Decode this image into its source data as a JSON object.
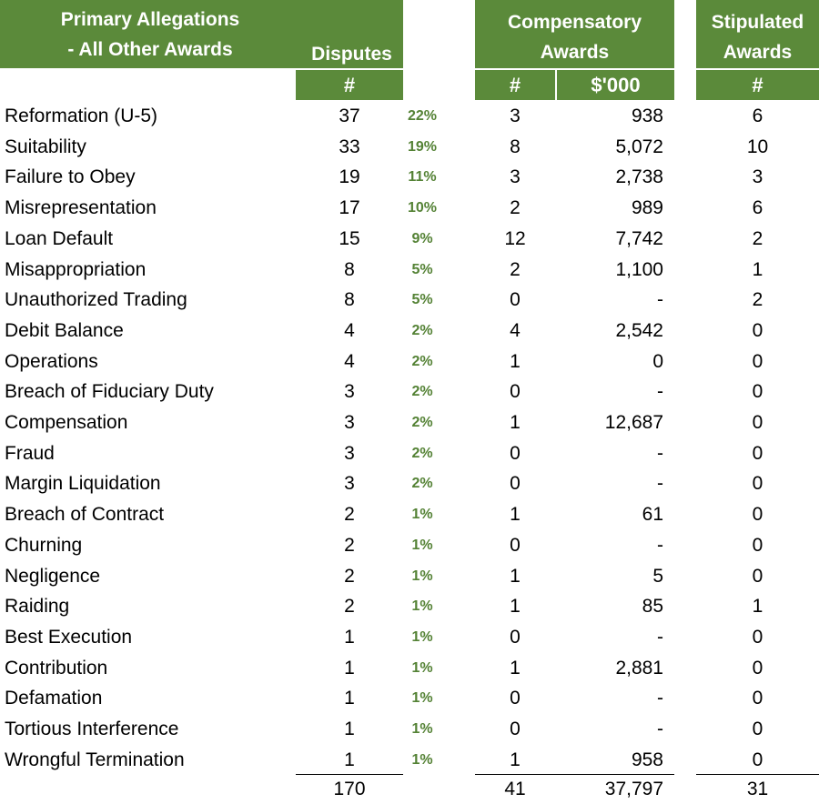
{
  "headers": {
    "primary_line1": "Primary Allegations",
    "primary_line2": "- All Other Awards",
    "disputes": "Disputes",
    "disputes_sub": "#",
    "comp_line1": "Compensatory",
    "comp_line2": "Awards",
    "comp_count_sub": "#",
    "comp_amount_sub": "$'000",
    "stip_line1": "Stipulated",
    "stip_line2": "Awards",
    "stip_sub": "#"
  },
  "rows": [
    {
      "name": "Reformation (U-5)",
      "disputes": "37",
      "pct": "22%",
      "comp_count": "3",
      "comp_amount": "938",
      "stip": "6"
    },
    {
      "name": "Suitability",
      "disputes": "33",
      "pct": "19%",
      "comp_count": "8",
      "comp_amount": "5,072",
      "stip": "10"
    },
    {
      "name": "Failure to Obey",
      "disputes": "19",
      "pct": "11%",
      "comp_count": "3",
      "comp_amount": "2,738",
      "stip": "3"
    },
    {
      "name": "Misrepresentation",
      "disputes": "17",
      "pct": "10%",
      "comp_count": "2",
      "comp_amount": "989",
      "stip": "6"
    },
    {
      "name": "Loan Default",
      "disputes": "15",
      "pct": "9%",
      "comp_count": "12",
      "comp_amount": "7,742",
      "stip": "2"
    },
    {
      "name": "Misappropriation",
      "disputes": "8",
      "pct": "5%",
      "comp_count": "2",
      "comp_amount": "1,100",
      "stip": "1"
    },
    {
      "name": "Unauthorized Trading",
      "disputes": "8",
      "pct": "5%",
      "comp_count": "0",
      "comp_amount": "-",
      "stip": "2"
    },
    {
      "name": "Debit Balance",
      "disputes": "4",
      "pct": "2%",
      "comp_count": "4",
      "comp_amount": "2,542",
      "stip": "0"
    },
    {
      "name": "Operations",
      "disputes": "4",
      "pct": "2%",
      "comp_count": "1",
      "comp_amount": "0",
      "stip": "0"
    },
    {
      "name": "Breach of Fiduciary Duty",
      "disputes": "3",
      "pct": "2%",
      "comp_count": "0",
      "comp_amount": "-",
      "stip": "0"
    },
    {
      "name": "Compensation",
      "disputes": "3",
      "pct": "2%",
      "comp_count": "1",
      "comp_amount": "12,687",
      "stip": "0"
    },
    {
      "name": "Fraud",
      "disputes": "3",
      "pct": "2%",
      "comp_count": "0",
      "comp_amount": "-",
      "stip": "0"
    },
    {
      "name": "Margin Liquidation",
      "disputes": "3",
      "pct": "2%",
      "comp_count": "0",
      "comp_amount": "-",
      "stip": "0"
    },
    {
      "name": "Breach of Contract",
      "disputes": "2",
      "pct": "1%",
      "comp_count": "1",
      "comp_amount": "61",
      "stip": "0"
    },
    {
      "name": "Churning",
      "disputes": "2",
      "pct": "1%",
      "comp_count": "0",
      "comp_amount": "-",
      "stip": "0"
    },
    {
      "name": "Negligence",
      "disputes": "2",
      "pct": "1%",
      "comp_count": "1",
      "comp_amount": "5",
      "stip": "0"
    },
    {
      "name": "Raiding",
      "disputes": "2",
      "pct": "1%",
      "comp_count": "1",
      "comp_amount": "85",
      "stip": "1"
    },
    {
      "name": "Best Execution",
      "disputes": "1",
      "pct": "1%",
      "comp_count": "0",
      "comp_amount": "-",
      "stip": "0"
    },
    {
      "name": "Contribution",
      "disputes": "1",
      "pct": "1%",
      "comp_count": "1",
      "comp_amount": "2,881",
      "stip": "0"
    },
    {
      "name": "Defamation",
      "disputes": "1",
      "pct": "1%",
      "comp_count": "0",
      "comp_amount": "-",
      "stip": "0"
    },
    {
      "name": "Tortious Interference",
      "disputes": "1",
      "pct": "1%",
      "comp_count": "0",
      "comp_amount": "-",
      "stip": "0"
    },
    {
      "name": "Wrongful Termination",
      "disputes": "1",
      "pct": "1%",
      "comp_count": "1",
      "comp_amount": "958",
      "stip": "0"
    }
  ],
  "totals": {
    "disputes": "170",
    "comp_count": "41",
    "comp_amount": "37,797",
    "stip": "31"
  },
  "colors": {
    "header_bg": "#5b8a3a",
    "header_text": "#ffffff",
    "pct_text": "#548235"
  }
}
